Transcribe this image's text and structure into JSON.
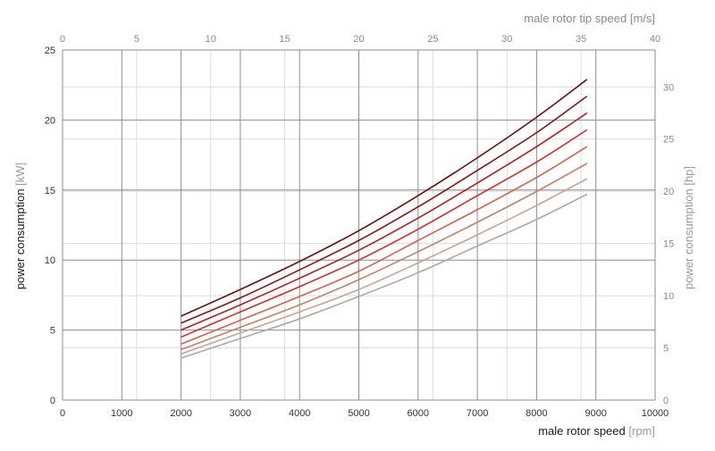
{
  "chart_data": {
    "type": "line",
    "xlabel_main": "male rotor speed",
    "xlabel_unit": "[rpm]",
    "x2label_main": "male rotor tip speed",
    "x2label_unit": "[m/s]",
    "ylabel_main": "power consumption",
    "ylabel_unit": "[kW]",
    "y2label_main": "power consumption",
    "y2label_unit": "[hp]",
    "xlim": [
      0,
      10000
    ],
    "ylim": [
      0,
      25
    ],
    "x2lim": [
      0,
      40
    ],
    "y2lim": [
      0,
      33.53
    ],
    "x_ticks": [
      "0",
      "1000",
      "2000",
      "3000",
      "4000",
      "5000",
      "6000",
      "7000",
      "8000",
      "9000",
      "10000"
    ],
    "y_ticks": [
      "0",
      "5",
      "10",
      "15",
      "20",
      "25"
    ],
    "x2_ticks": [
      "0",
      "5",
      "10",
      "15",
      "20",
      "25",
      "30",
      "35",
      "40"
    ],
    "y2_ticks": [
      "0",
      "5",
      "10",
      "15",
      "20",
      "25",
      "30"
    ],
    "grid": true,
    "legend": "none",
    "x": [
      2000,
      3000,
      4000,
      5000,
      6000,
      7000,
      8000,
      8850
    ],
    "series": [
      {
        "values": [
          6.0,
          7.9,
          9.9,
          12.1,
          14.6,
          17.3,
          20.2,
          22.9
        ],
        "color": "#6b0f12"
      },
      {
        "values": [
          5.5,
          7.3,
          9.3,
          11.4,
          13.8,
          16.4,
          19.1,
          21.7
        ],
        "color": "#8a1418"
      },
      {
        "values": [
          5.0,
          6.8,
          8.7,
          10.7,
          13.0,
          15.5,
          18.1,
          20.5
        ],
        "color": "#b51d22"
      },
      {
        "values": [
          4.5,
          6.3,
          8.1,
          10.0,
          12.2,
          14.6,
          17.0,
          19.3
        ],
        "color": "#d92a2a"
      },
      {
        "values": [
          4.0,
          5.7,
          7.4,
          9.2,
          11.4,
          13.6,
          15.9,
          18.1
        ],
        "color": "#d9604a"
      },
      {
        "values": [
          3.6,
          5.2,
          6.8,
          8.6,
          10.6,
          12.7,
          14.9,
          16.9
        ],
        "color": "#c97e66"
      },
      {
        "values": [
          3.3,
          4.8,
          6.3,
          7.9,
          9.8,
          11.8,
          13.9,
          15.8
        ],
        "color": "#c9a393"
      },
      {
        "values": [
          3.0,
          4.4,
          5.8,
          7.4,
          9.1,
          11.0,
          12.9,
          14.7
        ],
        "color": "#a7a9ac"
      }
    ]
  }
}
